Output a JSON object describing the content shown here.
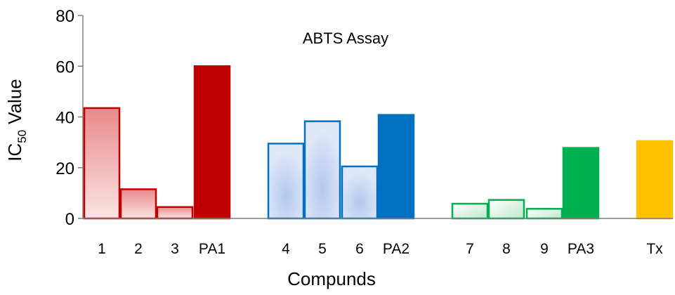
{
  "chart_data": {
    "type": "bar",
    "title": "ABTS Assay",
    "xlabel": "Compunds",
    "ylabel": {
      "main": "IC",
      "sub": "50",
      "rest": "Value"
    },
    "ylim": [
      0,
      80
    ],
    "yticks": [
      0,
      20,
      40,
      60,
      80
    ],
    "grid": false,
    "legend": "none",
    "categories": [
      "1",
      "2",
      "3",
      "PA1",
      "4",
      "5",
      "6",
      "PA2",
      "7",
      "8",
      "9",
      "PA3",
      "Tx"
    ],
    "values": [
      43.5,
      11.5,
      4.5,
      60,
      29.5,
      38.3,
      20.5,
      40.8,
      5.8,
      7.3,
      3.8,
      27.8,
      30.5
    ],
    "groups": [
      {
        "categories": [
          "1",
          "2",
          "3",
          "PA1"
        ],
        "color": "#c00000",
        "fill": "light-red-gradient",
        "solid_last": true
      },
      {
        "categories": [
          "4",
          "5",
          "6",
          "PA2"
        ],
        "color": "#0070c0",
        "fill": "light-blue",
        "solid_last": true
      },
      {
        "categories": [
          "7",
          "8",
          "9",
          "PA3"
        ],
        "color": "#00b050",
        "fill": "light-green-gradient",
        "solid_last": true
      },
      {
        "categories": [
          "Tx"
        ],
        "color": "#ffc000",
        "fill": "solid",
        "solid_last": true
      }
    ]
  }
}
